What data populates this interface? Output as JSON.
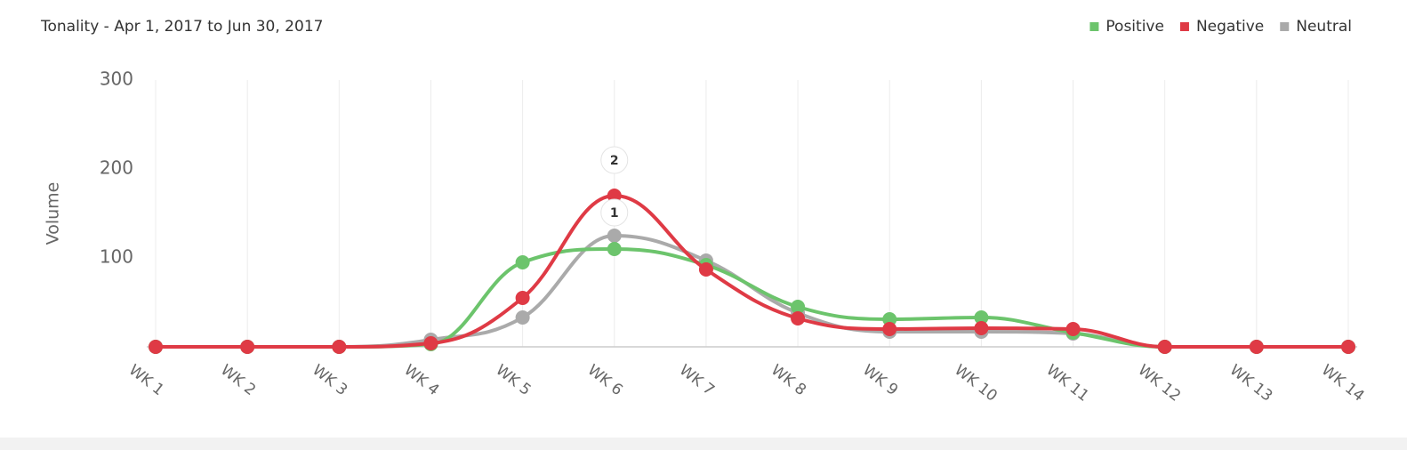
{
  "chart_data": {
    "type": "spline",
    "title": "Tonality - Apr 1, 2017 to Jun 30, 2017",
    "y_label": "Volume",
    "categories": [
      "WK 1",
      "WK 2",
      "WK 3",
      "WK 4",
      "WK 5",
      "WK 6",
      "WK 7",
      "WK 8",
      "WK 9",
      "WK 10",
      "WK 11",
      "WK 12",
      "WK 13",
      "WK 14"
    ],
    "series": [
      {
        "name": "Positive",
        "color": "#6cc46c",
        "values": [
          0,
          0,
          0,
          3,
          95,
          110,
          92,
          45,
          31,
          33,
          16,
          0,
          0,
          0
        ]
      },
      {
        "name": "Negative",
        "color": "#df3a45",
        "values": [
          0,
          0,
          0,
          4,
          55,
          170,
          87,
          32,
          20,
          21,
          20,
          0,
          0,
          0
        ]
      },
      {
        "name": "Neutral",
        "color": "#aaaaaa",
        "values": [
          0,
          0,
          0,
          8,
          33,
          125,
          97,
          38,
          17,
          17,
          15,
          0,
          0,
          0
        ]
      }
    ],
    "ylim": [
      0,
      300
    ],
    "yticks": [
      100,
      200,
      300
    ],
    "x_grid": true,
    "legend": "top-right",
    "annotations": [
      "2",
      "1"
    ]
  }
}
